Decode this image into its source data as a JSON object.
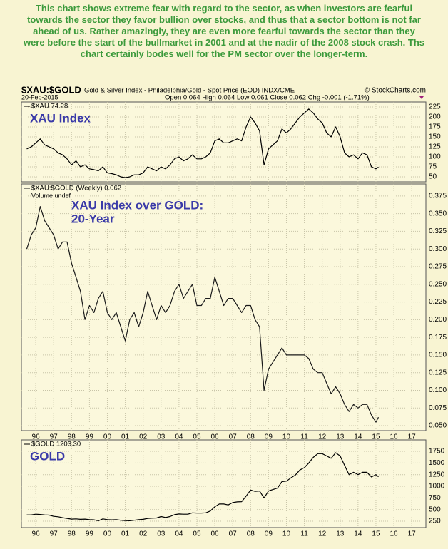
{
  "annotation": "This chart shows extreme fear with regard to the sector, as when investors are fearful towards the sector they favor bullion over stocks, and thus that a sector bottom is not far ahead of us. Rather amazingly, they are even more fearful towards the sector than they were before the start of the bullmarket in 2001 and at the nadir of the 2008 stock crash. Ths chart certainly bodes well for the PM sector over the longer-term.",
  "header": {
    "symbol": "$XAU:$GOLD",
    "subtitle": "Gold & Silver Index - Philadelphia/Gold - Spot Price (EOD) INDX/CME",
    "source": "© StockCharts.com",
    "date": "20-Feb-2015",
    "quote": "Open 0.064 High 0.064 Low 0.061 Close 0.062 Chg -0.001 (-1.71%)"
  },
  "chart_data": [
    {
      "type": "line",
      "title": "XAU Index",
      "x": [
        1995.5,
        1995.75,
        1996,
        1996.25,
        1996.5,
        1996.75,
        1997,
        1997.25,
        1997.5,
        1997.75,
        1998,
        1998.25,
        1998.5,
        1998.75,
        1999,
        1999.25,
        1999.5,
        1999.75,
        2000,
        2000.25,
        2000.5,
        2000.75,
        2001,
        2001.25,
        2001.5,
        2001.75,
        2002,
        2002.25,
        2002.5,
        2002.75,
        2003,
        2003.25,
        2003.5,
        2003.75,
        2004,
        2004.25,
        2004.5,
        2004.75,
        2005,
        2005.25,
        2005.5,
        2005.75,
        2006,
        2006.25,
        2006.5,
        2006.75,
        2007,
        2007.25,
        2007.5,
        2007.75,
        2008,
        2008.25,
        2008.5,
        2008.75,
        2009,
        2009.25,
        2009.5,
        2009.75,
        2010,
        2010.25,
        2010.5,
        2010.75,
        2011,
        2011.25,
        2011.5,
        2011.75,
        2012,
        2012.25,
        2012.5,
        2012.75,
        2013,
        2013.25,
        2013.5,
        2013.75,
        2014,
        2014.25,
        2014.5,
        2014.75,
        2015,
        2015.14
      ],
      "series": [
        {
          "name": "$XAU 74.28",
          "color": "#000000",
          "values": [
            120,
            125,
            135,
            145,
            130,
            125,
            120,
            110,
            105,
            95,
            80,
            90,
            75,
            80,
            70,
            68,
            65,
            75,
            60,
            58,
            55,
            50,
            48,
            50,
            55,
            55,
            60,
            75,
            70,
            65,
            75,
            70,
            80,
            95,
            100,
            90,
            95,
            105,
            95,
            95,
            100,
            110,
            140,
            145,
            135,
            135,
            140,
            145,
            140,
            175,
            200,
            185,
            165,
            80,
            120,
            130,
            140,
            170,
            160,
            170,
            185,
            200,
            210,
            220,
            210,
            195,
            185,
            160,
            150,
            175,
            150,
            110,
            100,
            105,
            95,
            110,
            105,
            75,
            70,
            74.28
          ]
        }
      ],
      "xlim": [
        1995.2,
        2017.79
      ],
      "ylim": [
        37.5,
        237.5
      ],
      "xticks": [
        1996,
        1997,
        1998,
        1999,
        2000,
        2001,
        2002,
        2003,
        2004,
        2005,
        2006,
        2007,
        2008,
        2009,
        2010,
        2011,
        2012,
        2013,
        2014,
        2015,
        2016,
        2017
      ],
      "yticks": [
        50,
        75,
        100,
        125,
        150,
        175,
        200,
        225
      ],
      "grid": true
    },
    {
      "type": "line",
      "title_lines": [
        "XAU Index over GOLD:",
        "20-Year"
      ],
      "note": "Volume undef",
      "x": [
        1995.5,
        1995.75,
        1996,
        1996.25,
        1996.5,
        1996.75,
        1997,
        1997.25,
        1997.5,
        1997.75,
        1998,
        1998.25,
        1998.5,
        1998.75,
        1999,
        1999.25,
        1999.5,
        1999.75,
        2000,
        2000.25,
        2000.5,
        2000.75,
        2001,
        2001.25,
        2001.5,
        2001.75,
        2002,
        2002.25,
        2002.5,
        2002.75,
        2003,
        2003.25,
        2003.5,
        2003.75,
        2004,
        2004.25,
        2004.5,
        2004.75,
        2005,
        2005.25,
        2005.5,
        2005.75,
        2006,
        2006.25,
        2006.5,
        2006.75,
        2007,
        2007.25,
        2007.5,
        2007.75,
        2008,
        2008.25,
        2008.5,
        2008.75,
        2009,
        2009.25,
        2009.5,
        2009.75,
        2010,
        2010.25,
        2010.5,
        2010.75,
        2011,
        2011.25,
        2011.5,
        2011.75,
        2012,
        2012.25,
        2012.5,
        2012.75,
        2013,
        2013.25,
        2013.5,
        2013.75,
        2014,
        2014.25,
        2014.5,
        2014.75,
        2015,
        2015.14
      ],
      "series": [
        {
          "name": "$XAU:$GOLD (Weekly) 0.062",
          "color": "#1a1a1a",
          "values": [
            0.3,
            0.32,
            0.33,
            0.36,
            0.34,
            0.33,
            0.32,
            0.3,
            0.31,
            0.31,
            0.28,
            0.26,
            0.24,
            0.2,
            0.22,
            0.21,
            0.23,
            0.24,
            0.21,
            0.2,
            0.21,
            0.19,
            0.17,
            0.2,
            0.21,
            0.19,
            0.21,
            0.24,
            0.22,
            0.2,
            0.22,
            0.21,
            0.22,
            0.24,
            0.25,
            0.23,
            0.24,
            0.25,
            0.22,
            0.22,
            0.23,
            0.23,
            0.26,
            0.24,
            0.22,
            0.23,
            0.23,
            0.22,
            0.21,
            0.22,
            0.22,
            0.2,
            0.19,
            0.1,
            0.13,
            0.14,
            0.15,
            0.16,
            0.15,
            0.15,
            0.15,
            0.15,
            0.15,
            0.145,
            0.13,
            0.125,
            0.125,
            0.11,
            0.095,
            0.105,
            0.095,
            0.08,
            0.07,
            0.08,
            0.075,
            0.08,
            0.08,
            0.065,
            0.055,
            0.062
          ]
        }
      ],
      "xlim": [
        1995.2,
        2017.79
      ],
      "ylim": [
        0.043,
        0.392
      ],
      "xticks": [
        {
          "value": 1996,
          "label": "96"
        },
        {
          "value": 1997,
          "label": "97"
        },
        {
          "value": 1998,
          "label": "98"
        },
        {
          "value": 1999,
          "label": "99"
        },
        {
          "value": 2000,
          "label": "00"
        },
        {
          "value": 2001,
          "label": "01"
        },
        {
          "value": 2002,
          "label": "02"
        },
        {
          "value": 2003,
          "label": "03"
        },
        {
          "value": 2004,
          "label": "04"
        },
        {
          "value": 2005,
          "label": "05"
        },
        {
          "value": 2006,
          "label": "06"
        },
        {
          "value": 2007,
          "label": "07"
        },
        {
          "value": 2008,
          "label": "08"
        },
        {
          "value": 2009,
          "label": "09"
        },
        {
          "value": 2010,
          "label": "10"
        },
        {
          "value": 2011,
          "label": "11"
        },
        {
          "value": 2012,
          "label": "12"
        },
        {
          "value": 2013,
          "label": "13"
        },
        {
          "value": 2014,
          "label": "14"
        },
        {
          "value": 2015,
          "label": "15"
        },
        {
          "value": 2016,
          "label": "16"
        },
        {
          "value": 2017,
          "label": "17"
        }
      ],
      "yticks": [
        {
          "value": 0.05,
          "label": "0.050"
        },
        0.075,
        {
          "value": 0.1,
          "label": "0.100"
        },
        0.125,
        {
          "value": 0.15,
          "label": "0.150"
        },
        0.175,
        {
          "value": 0.2,
          "label": "0.200"
        },
        0.225,
        {
          "value": 0.25,
          "label": "0.250"
        },
        0.275,
        {
          "value": 0.3,
          "label": "0.300"
        },
        0.325,
        {
          "value": 0.35,
          "label": "0.350"
        },
        0.375
      ],
      "grid": true
    },
    {
      "type": "line",
      "title": "GOLD",
      "x": [
        1995.5,
        1995.75,
        1996,
        1996.25,
        1996.5,
        1996.75,
        1997,
        1997.25,
        1997.5,
        1997.75,
        1998,
        1998.25,
        1998.5,
        1998.75,
        1999,
        1999.25,
        1999.5,
        1999.75,
        2000,
        2000.25,
        2000.5,
        2000.75,
        2001,
        2001.25,
        2001.5,
        2001.75,
        2002,
        2002.25,
        2002.5,
        2002.75,
        2003,
        2003.25,
        2003.5,
        2003.75,
        2004,
        2004.25,
        2004.5,
        2004.75,
        2005,
        2005.25,
        2005.5,
        2005.75,
        2006,
        2006.25,
        2006.5,
        2006.75,
        2007,
        2007.25,
        2007.5,
        2007.75,
        2008,
        2008.25,
        2008.5,
        2008.75,
        2009,
        2009.25,
        2009.5,
        2009.75,
        2010,
        2010.25,
        2010.5,
        2010.75,
        2011,
        2011.25,
        2011.5,
        2011.75,
        2012,
        2012.25,
        2012.5,
        2012.75,
        2013,
        2013.25,
        2013.5,
        2013.75,
        2014,
        2014.25,
        2014.5,
        2014.75,
        2015,
        2015.14
      ],
      "series": [
        {
          "name": "$GOLD 1203.30",
          "color": "#000000",
          "values": [
            385,
            385,
            400,
            395,
            385,
            380,
            355,
            345,
            325,
            310,
            295,
            300,
            290,
            295,
            285,
            280,
            260,
            300,
            285,
            280,
            285,
            270,
            265,
            260,
            270,
            285,
            290,
            310,
            315,
            320,
            350,
            330,
            350,
            390,
            405,
            400,
            400,
            430,
            425,
            425,
            430,
            470,
            560,
            620,
            620,
            600,
            650,
            665,
            670,
            790,
            920,
            890,
            900,
            750,
            900,
            930,
            960,
            1100,
            1110,
            1180,
            1240,
            1350,
            1400,
            1500,
            1620,
            1700,
            1700,
            1650,
            1600,
            1720,
            1650,
            1450,
            1250,
            1300,
            1250,
            1300,
            1300,
            1200,
            1250,
            1203.3
          ]
        }
      ],
      "xlim": [
        1995.2,
        2017.79
      ],
      "ylim": [
        113,
        1995
      ],
      "xticks": [
        {
          "value": 1996,
          "label": "96"
        },
        {
          "value": 1997,
          "label": "97"
        },
        {
          "value": 1998,
          "label": "98"
        },
        {
          "value": 1999,
          "label": "99"
        },
        {
          "value": 2000,
          "label": "00"
        },
        {
          "value": 2001,
          "label": "01"
        },
        {
          "value": 2002,
          "label": "02"
        },
        {
          "value": 2003,
          "label": "03"
        },
        {
          "value": 2004,
          "label": "04"
        },
        {
          "value": 2005,
          "label": "05"
        },
        {
          "value": 2006,
          "label": "06"
        },
        {
          "value": 2007,
          "label": "07"
        },
        {
          "value": 2008,
          "label": "08"
        },
        {
          "value": 2009,
          "label": "09"
        },
        {
          "value": 2010,
          "label": "10"
        },
        {
          "value": 2011,
          "label": "11"
        },
        {
          "value": 2012,
          "label": "12"
        },
        {
          "value": 2013,
          "label": "13"
        },
        {
          "value": 2014,
          "label": "14"
        },
        {
          "value": 2015,
          "label": "15"
        },
        {
          "value": 2016,
          "label": "16"
        },
        {
          "value": 2017,
          "label": "17"
        }
      ],
      "yticks": [
        250,
        500,
        750,
        1000,
        1250,
        1500,
        1750
      ],
      "grid": true
    }
  ]
}
